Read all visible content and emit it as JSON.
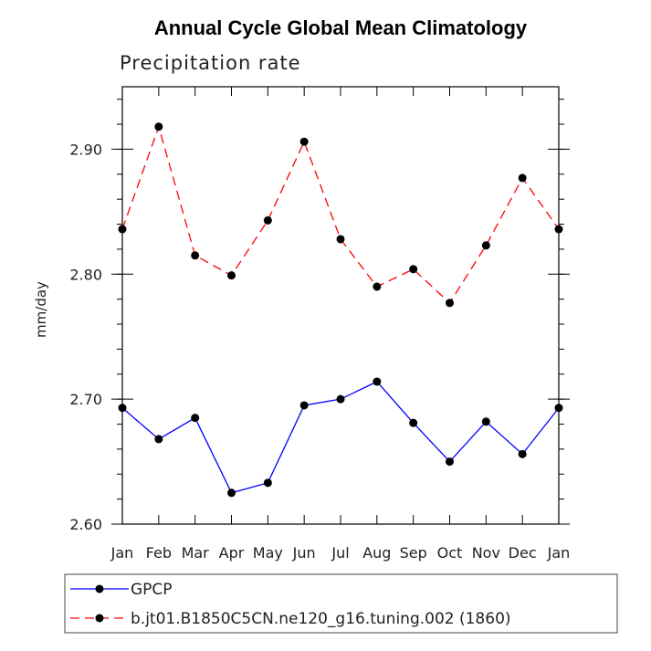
{
  "chart_data": {
    "type": "line",
    "title": "Annual Cycle Global Mean Climatology",
    "subtitle": "Precipitation rate",
    "xlabel": "",
    "ylabel": "mm/day",
    "categories": [
      "Jan",
      "Feb",
      "Mar",
      "Apr",
      "May",
      "Jun",
      "Jul",
      "Aug",
      "Sep",
      "Oct",
      "Nov",
      "Dec",
      "Jan"
    ],
    "ylim": [
      2.6,
      2.95
    ],
    "yticks": [
      2.6,
      2.7,
      2.8,
      2.9
    ],
    "ytick_labels": [
      "2.60",
      "2.70",
      "2.80",
      "2.90"
    ],
    "series": [
      {
        "name": "GPCP",
        "color": "#0000ff",
        "style": "solid",
        "values": [
          2.693,
          2.668,
          2.685,
          2.625,
          2.633,
          2.695,
          2.7,
          2.714,
          2.681,
          2.65,
          2.682,
          2.656,
          2.693
        ]
      },
      {
        "name": "b.jt01.B1850C5CN.ne120_g16.tuning.002 (1860)",
        "color": "#ff0000",
        "style": "dashed",
        "values": [
          2.836,
          2.918,
          2.815,
          2.799,
          2.843,
          2.906,
          2.828,
          2.79,
          2.804,
          2.777,
          2.823,
          2.877,
          2.836
        ]
      }
    ]
  }
}
